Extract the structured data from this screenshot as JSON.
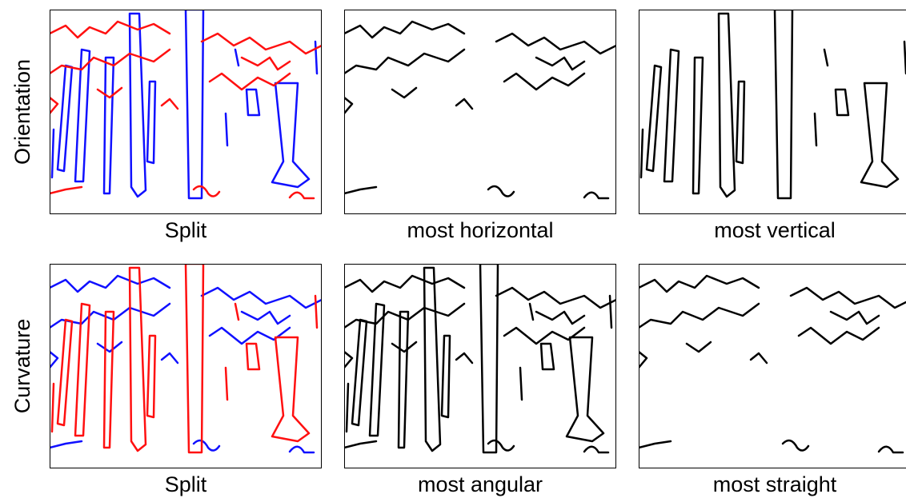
{
  "rows": [
    {
      "label": "Orientation",
      "panels": [
        {
          "caption": "Split"
        },
        {
          "caption": "most horizontal"
        },
        {
          "caption": "most vertical"
        }
      ]
    },
    {
      "label": "Curvature",
      "panels": [
        {
          "caption": "Split"
        },
        {
          "caption": "most angular"
        },
        {
          "caption": "most straight"
        }
      ]
    }
  ]
}
